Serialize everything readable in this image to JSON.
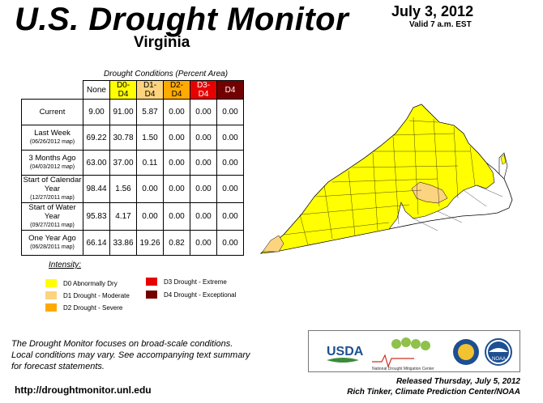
{
  "header": {
    "title": "U.S. Drought Monitor",
    "state": "Virginia",
    "date": "July 3, 2012",
    "valid": "Valid 7 a.m. EST"
  },
  "table": {
    "caption": "Drought Conditions (Percent Area)",
    "columns": [
      "None",
      "D0-D4",
      "D1-D4",
      "D2-D4",
      "D3-D4",
      "D4"
    ],
    "rows": [
      {
        "label": "Current",
        "sub": "",
        "values": [
          "9.00",
          "91.00",
          "5.87",
          "0.00",
          "0.00",
          "0.00"
        ]
      },
      {
        "label": "Last Week",
        "sub": "(06/26/2012 map)",
        "values": [
          "69.22",
          "30.78",
          "1.50",
          "0.00",
          "0.00",
          "0.00"
        ]
      },
      {
        "label": "3 Months Ago",
        "sub": "(04/03/2012 map)",
        "values": [
          "63.00",
          "37.00",
          "0.11",
          "0.00",
          "0.00",
          "0.00"
        ]
      },
      {
        "label": "Start of Calendar Year",
        "sub": "(12/27/2011 map)",
        "values": [
          "98.44",
          "1.56",
          "0.00",
          "0.00",
          "0.00",
          "0.00"
        ]
      },
      {
        "label": "Start of Water Year",
        "sub": "(09/27/2011 map)",
        "values": [
          "95.83",
          "4.17",
          "0.00",
          "0.00",
          "0.00",
          "0.00"
        ]
      },
      {
        "label": "One Year Ago",
        "sub": "(06/28/2011 map)",
        "values": [
          "66.14",
          "33.86",
          "19.26",
          "0.82",
          "0.00",
          "0.00"
        ]
      }
    ]
  },
  "legend": {
    "title": "Intensity:",
    "items": [
      {
        "label": "D0 Abnormally Dry",
        "color": "#ffff00"
      },
      {
        "label": "D1 Drought - Moderate",
        "color": "#fcd37f"
      },
      {
        "label": "D2 Drought - Severe",
        "color": "#ffaa00"
      },
      {
        "label": "D3 Drought - Extreme",
        "color": "#e60000"
      },
      {
        "label": "D4 Drought - Exceptional",
        "color": "#730000"
      }
    ]
  },
  "note": {
    "line1": "The Drought Monitor focuses on broad-scale conditions.",
    "line2": "Local conditions may vary. See accompanying text summary",
    "line3": "for forecast statements."
  },
  "footer": {
    "url": "http://droughtmonitor.unl.edu",
    "released": "Released Thursday, July 5, 2012",
    "author": "Rich Tinker, Climate Prediction Center/NOAA"
  },
  "logos": {
    "usda": "USDA",
    "ndmc": "National Drought Mitigation Center",
    "noaa": "NOAA"
  },
  "colors": {
    "none": "#ffffff",
    "d0": "#ffff00",
    "d1": "#fcd37f",
    "d2": "#ffaa00",
    "d3": "#e60000",
    "d4": "#730000"
  }
}
